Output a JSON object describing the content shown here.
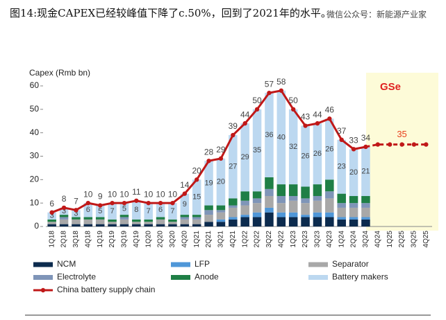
{
  "header": {
    "title": "图14:现金CAPEX已经较峰值下降了c.50%，回到了2021年的水平。",
    "watermark": "微信公众号：新能源产业家"
  },
  "chart_data": {
    "type": "bar",
    "y_label": "Capex (Rmb bn)",
    "annotation": "GSe",
    "categories": [
      "1Q18",
      "2Q18",
      "3Q18",
      "4Q18",
      "1Q19",
      "2Q19",
      "3Q19",
      "4Q19",
      "1Q20",
      "2Q20",
      "3Q20",
      "4Q20",
      "1Q21",
      "2Q21",
      "3Q21",
      "4Q21",
      "1Q22",
      "2Q22",
      "3Q22",
      "4Q22",
      "1Q23",
      "2Q23",
      "3Q23",
      "4Q23",
      "1Q24",
      "2Q24",
      "3Q24",
      "4Q24",
      "1Q25",
      "2Q25",
      "3Q25",
      "4Q25"
    ],
    "ylim": [
      0,
      60
    ],
    "yticks": [
      0,
      10,
      20,
      30,
      40,
      50,
      60
    ],
    "stacked": true,
    "series": [
      {
        "name": "NCM",
        "type": "bar",
        "color": "#0c2b4e",
        "values": [
          1,
          1,
          1,
          1,
          1,
          1,
          1,
          1,
          1,
          1,
          1,
          1,
          1,
          2,
          2,
          3,
          4,
          4,
          6,
          4,
          4,
          4,
          4,
          4,
          3,
          3,
          3,
          null,
          null,
          null,
          null,
          null
        ]
      },
      {
        "name": "LFP",
        "type": "bar",
        "color": "#4f97d8",
        "values": [
          0,
          0,
          0,
          0,
          0,
          0,
          0,
          0,
          0,
          0,
          0,
          0,
          0,
          0,
          1,
          1,
          1,
          2,
          2,
          2,
          2,
          1,
          2,
          2,
          1,
          1,
          1,
          null,
          null,
          null,
          null,
          null
        ]
      },
      {
        "name": "Separator",
        "type": "bar",
        "color": "#a8a8a8",
        "values": [
          1,
          2,
          2,
          2,
          2,
          1,
          2,
          1,
          1,
          2,
          1,
          2,
          2,
          3,
          3,
          4,
          4,
          4,
          5,
          4,
          5,
          5,
          5,
          6,
          4,
          4,
          4,
          null,
          null,
          null,
          null,
          null
        ]
      },
      {
        "name": "Electrolyte",
        "type": "bar",
        "color": "#7f95b8",
        "values": [
          0,
          1,
          0,
          0,
          0,
          0,
          1,
          0,
          0,
          0,
          0,
          1,
          1,
          2,
          1,
          1,
          2,
          2,
          3,
          3,
          2,
          2,
          2,
          3,
          2,
          2,
          2,
          null,
          null,
          null,
          null,
          null
        ]
      },
      {
        "name": "Anode",
        "type": "bar",
        "color": "#1f7f46",
        "values": [
          1,
          1,
          1,
          1,
          1,
          1,
          1,
          1,
          1,
          1,
          1,
          1,
          1,
          2,
          2,
          3,
          4,
          3,
          5,
          5,
          5,
          5,
          5,
          5,
          4,
          3,
          3,
          null,
          null,
          null,
          null,
          null
        ]
      },
      {
        "name": "Battery makers",
        "type": "bar",
        "color": "#bcd8f0",
        "labels": true,
        "values": [
          3,
          3,
          3,
          6,
          5,
          7,
          5,
          8,
          7,
          6,
          7,
          9,
          15,
          19,
          20,
          27,
          29,
          35,
          36,
          40,
          32,
          26,
          26,
          26,
          23,
          20,
          21,
          null,
          null,
          null,
          null,
          null
        ]
      },
      {
        "name": "China battery supply chain",
        "type": "line",
        "color": "#c01818",
        "labels": true,
        "values": [
          6,
          8,
          7,
          10,
          9,
          10,
          10,
          11,
          10,
          10,
          10,
          14,
          20,
          28,
          29,
          39,
          44,
          50,
          57,
          58,
          50,
          43,
          44,
          46,
          37,
          33,
          34,
          null,
          null,
          null,
          null,
          null
        ]
      },
      {
        "type": "line",
        "color": "#c01818",
        "linestyle": "dashed",
        "values": [
          null,
          null,
          null,
          null,
          null,
          null,
          null,
          null,
          null,
          null,
          null,
          null,
          null,
          null,
          null,
          null,
          null,
          null,
          null,
          null,
          null,
          null,
          null,
          null,
          null,
          null,
          null,
          35,
          35,
          35,
          35,
          35
        ],
        "value_labels": [
          null,
          null,
          null,
          null,
          null,
          null,
          null,
          null,
          null,
          null,
          null,
          null,
          null,
          null,
          null,
          null,
          null,
          null,
          null,
          null,
          null,
          null,
          null,
          null,
          null,
          null,
          null,
          null,
          null,
          "35",
          null,
          null
        ],
        "label_color": "#e8401c"
      }
    ]
  }
}
